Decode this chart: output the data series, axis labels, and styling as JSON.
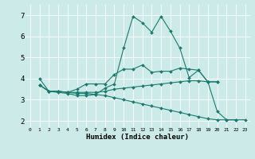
{
  "xlabel": "Humidex (Indice chaleur)",
  "bg_color": "#cceae7",
  "line_color": "#1a7a6e",
  "xlim": [
    -0.5,
    23.5
  ],
  "ylim": [
    1.7,
    7.5
  ],
  "xtick_vals": [
    0,
    1,
    2,
    3,
    4,
    5,
    6,
    7,
    8,
    9,
    10,
    11,
    12,
    13,
    14,
    15,
    16,
    17,
    18,
    19,
    20,
    21,
    22,
    23
  ],
  "ytick_vals": [
    2,
    3,
    4,
    5,
    6,
    7
  ],
  "lines": [
    {
      "x": [
        1,
        2,
        3,
        4,
        5,
        6,
        7,
        8,
        9,
        10,
        11,
        12,
        13,
        14,
        15,
        16,
        17,
        18,
        19,
        20,
        21,
        22
      ],
      "y": [
        3.7,
        3.4,
        3.35,
        3.3,
        3.2,
        3.2,
        3.25,
        3.55,
        3.75,
        5.45,
        6.95,
        6.65,
        6.2,
        6.95,
        6.25,
        5.45,
        4.05,
        4.4,
        3.85,
        2.45,
        2.05,
        2.05
      ]
    },
    {
      "x": [
        1,
        2,
        3,
        4,
        5,
        6,
        7,
        8,
        9,
        10,
        11,
        12,
        13,
        14,
        15,
        16,
        17,
        18,
        19,
        20
      ],
      "y": [
        4.0,
        3.4,
        3.4,
        3.35,
        3.5,
        3.75,
        3.75,
        3.75,
        4.2,
        4.45,
        4.45,
        4.65,
        4.3,
        4.35,
        4.35,
        4.5,
        4.45,
        4.4,
        3.85,
        3.85
      ]
    },
    {
      "x": [
        1,
        2,
        3,
        4,
        5,
        6,
        7,
        8,
        9,
        10,
        11,
        12,
        13,
        14,
        15,
        16,
        17,
        18,
        19,
        20
      ],
      "y": [
        3.7,
        3.4,
        3.4,
        3.35,
        3.35,
        3.35,
        3.35,
        3.4,
        3.5,
        3.55,
        3.6,
        3.65,
        3.7,
        3.75,
        3.8,
        3.85,
        3.9,
        3.9,
        3.85,
        3.85
      ]
    },
    {
      "x": [
        1,
        2,
        3,
        4,
        5,
        6,
        7,
        8,
        9,
        10,
        11,
        12,
        13,
        14,
        15,
        16,
        17,
        18,
        19,
        20,
        21,
        22,
        23
      ],
      "y": [
        3.7,
        3.4,
        3.4,
        3.35,
        3.3,
        3.3,
        3.25,
        3.2,
        3.1,
        3.0,
        2.9,
        2.8,
        2.7,
        2.6,
        2.5,
        2.4,
        2.3,
        2.2,
        2.1,
        2.05,
        2.05,
        2.05,
        2.05
      ]
    }
  ]
}
